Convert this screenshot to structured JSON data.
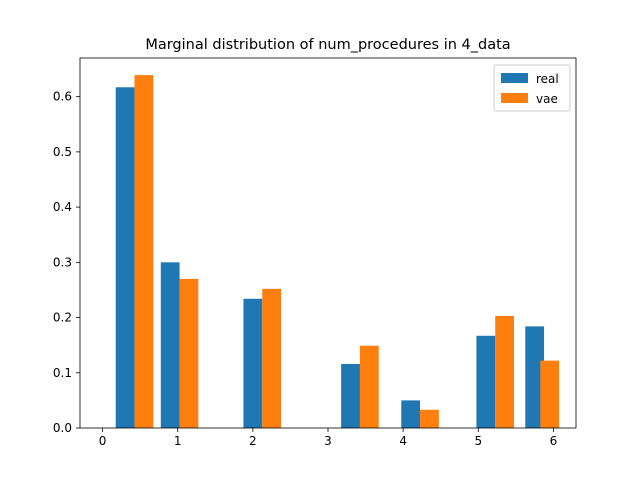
{
  "chart_data": {
    "type": "bar",
    "title": "Marginal distribution of num_procedures in 4_data",
    "xlabel": "",
    "ylabel": "",
    "xlim": [
      -0.3,
      6.3
    ],
    "ylim": [
      0,
      0.67
    ],
    "xticks": [
      "0",
      "1",
      "2",
      "3",
      "4",
      "5",
      "6"
    ],
    "yticks": [
      "0.0",
      "0.1",
      "0.2",
      "0.3",
      "0.4",
      "0.5",
      "0.6"
    ],
    "legend_position": "top-right",
    "grid": false,
    "series": [
      {
        "name": "real",
        "color": "#1f77b4",
        "x": [
          0.3,
          0.9,
          2.0,
          3.3,
          4.1,
          5.1,
          5.75
        ],
        "values": [
          0.617,
          0.3,
          0.234,
          0.116,
          0.05,
          0.167,
          0.184
        ]
      },
      {
        "name": "vae",
        "color": "#ff7f0e",
        "x": [
          0.55,
          1.15,
          2.25,
          3.55,
          4.35,
          5.35,
          5.95
        ],
        "values": [
          0.639,
          0.27,
          0.252,
          0.149,
          0.033,
          0.203,
          0.122
        ]
      }
    ]
  }
}
